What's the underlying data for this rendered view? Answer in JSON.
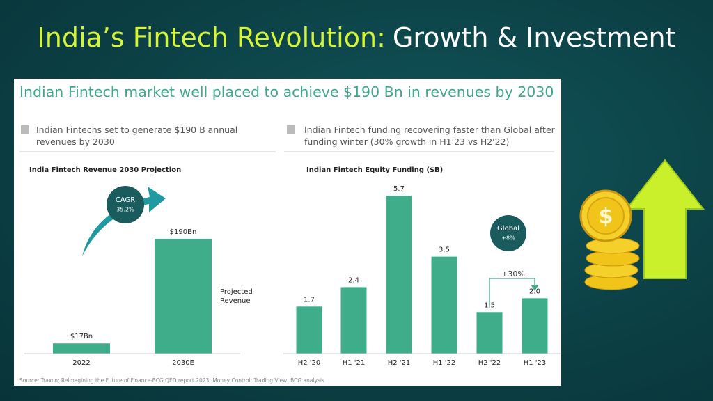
{
  "title_highlight": "India’s Fintech Revolution:",
  "title_rest": "Growth & Investment",
  "headline": "Indian Fintech market well placed to achieve $190 Bn in revenues by 2030",
  "bullets": [
    "Indian Fintechs set to generate $190 B annual revenues by 2030",
    "Indian Fintech funding recovering faster than Global after funding winter (30% growth in H1'23 vs H2'22)"
  ],
  "source": "Source: Traxcn; Reimagining the Future of Finance-BCG QED report 2023; Money Control; Trading View; BCG analysis",
  "chart_data": [
    {
      "type": "bar",
      "title": "India Fintech Revenue 2030 Projection",
      "categories": [
        "2022",
        "2030E"
      ],
      "values": [
        17,
        190
      ],
      "value_labels": [
        "$17Bn",
        "$190Bn"
      ],
      "color": "#3fac8a",
      "annotations": [
        "CAGR",
        "35.2%",
        "Projected Revenue"
      ]
    },
    {
      "type": "bar",
      "title": "Indian Fintech Equity Funding ($B)",
      "categories": [
        "H2 '20",
        "H1 '21",
        "H2 '21",
        "H1 '22",
        "H2 '22",
        "H1 '23"
      ],
      "values": [
        1.7,
        2.4,
        5.7,
        3.5,
        1.5,
        2.0
      ],
      "value_labels": [
        "1.7",
        "2.4",
        "5.7",
        "3.5",
        "1.5",
        "2.0"
      ],
      "color": "#3fac8a",
      "annotations": [
        "Global",
        "+8%",
        "+30%"
      ]
    }
  ]
}
